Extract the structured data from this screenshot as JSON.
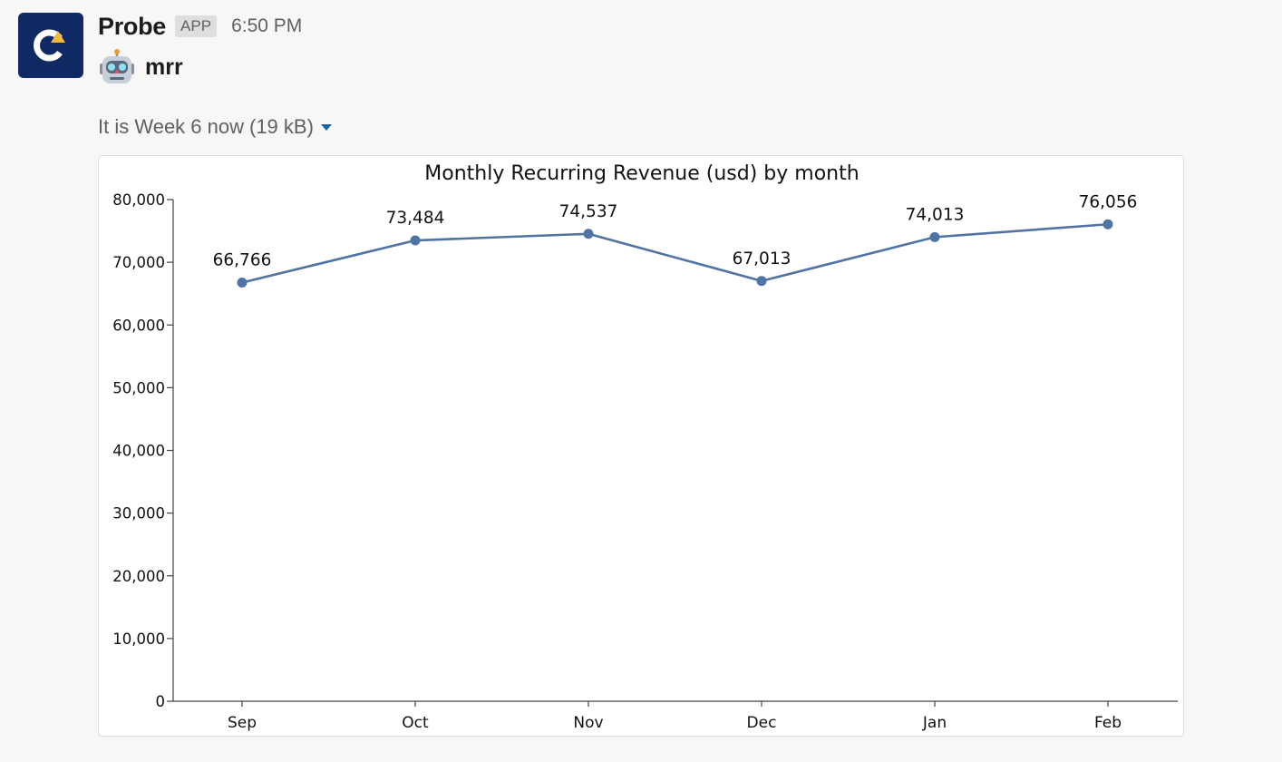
{
  "message": {
    "sender": "Probe",
    "badge": "APP",
    "timestamp": "6:50 PM",
    "text": "mrr",
    "avatar_icon": "probe-logo-icon",
    "emoji_icon": "robot-face-icon"
  },
  "attachment": {
    "title": "It is Week 6 now",
    "size": "(19 kB)",
    "menu_icon": "caret-down-icon"
  },
  "colors": {
    "line": "#4f73a3",
    "avatar_bg": "#0f2a63",
    "avatar_accent": "#f4b740"
  },
  "chart_data": {
    "type": "line",
    "title": "Monthly Recurring Revenue (usd) by month",
    "xlabel": "",
    "ylabel": "",
    "categories": [
      "Sep",
      "Oct",
      "Nov",
      "Dec",
      "Jan",
      "Feb"
    ],
    "values": [
      66766,
      73484,
      74537,
      67013,
      74013,
      76056
    ],
    "data_labels": [
      "66,766",
      "73,484",
      "74,537",
      "67,013",
      "74,013",
      "76,056"
    ],
    "ylim": [
      0,
      80000
    ],
    "yticks": [
      0,
      10000,
      20000,
      30000,
      40000,
      50000,
      60000,
      70000,
      80000
    ],
    "ytick_labels": [
      "0",
      "10,000",
      "20,000",
      "30,000",
      "40,000",
      "50,000",
      "60,000",
      "70,000",
      "80,000"
    ],
    "grid": false,
    "legend": "none"
  }
}
